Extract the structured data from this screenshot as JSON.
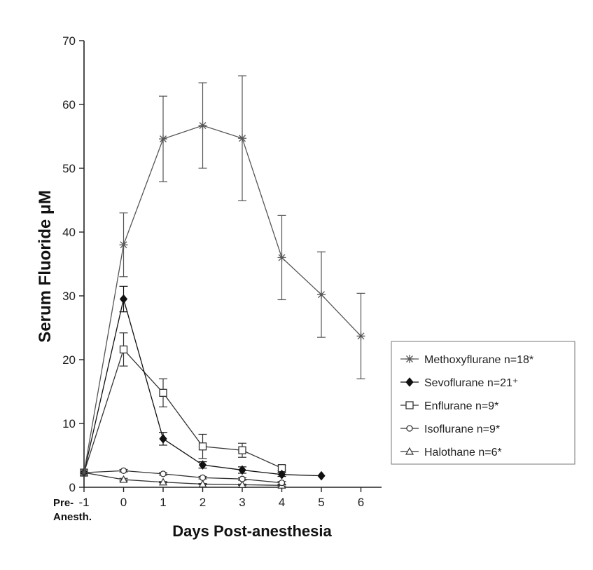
{
  "chart_data": {
    "type": "line",
    "xlabel": "Days Post-anesthesia",
    "ylabel": "Serum Fluoride μM",
    "x_pre_label": [
      "Pre-",
      "Anesth."
    ],
    "xlim": [
      -1,
      6.5
    ],
    "ylim": [
      0,
      70
    ],
    "x_ticks": [
      -1,
      0,
      1,
      2,
      3,
      4,
      5,
      6
    ],
    "y_ticks": [
      0,
      10,
      20,
      30,
      40,
      50,
      60,
      70
    ],
    "grid": false,
    "legend_position": "right",
    "series": [
      {
        "name": "Methoxyflurane n=18*",
        "marker": "star",
        "color": "#555555",
        "x": [
          -1,
          0,
          1,
          2,
          3,
          4,
          5,
          6
        ],
        "y": [
          2.3,
          38,
          54.6,
          56.7,
          54.7,
          36,
          30.2,
          23.7
        ],
        "err": [
          0,
          5,
          6.7,
          6.7,
          9.8,
          6.6,
          6.7,
          6.7
        ]
      },
      {
        "name": "Sevoflurane n=21⁺",
        "marker": "diamond",
        "color": "#111111",
        "x": [
          -1,
          0,
          1,
          2,
          3,
          4,
          5
        ],
        "y": [
          2.3,
          29.5,
          7.6,
          3.5,
          2.7,
          2.0,
          1.8
        ],
        "err": [
          0,
          2.0,
          1.0,
          0.5,
          0.5,
          0.3,
          0
        ]
      },
      {
        "name": "Enflurane n=9*",
        "marker": "square",
        "color": "#333333",
        "x": [
          -1,
          0,
          1,
          2,
          3,
          4
        ],
        "y": [
          2.3,
          21.6,
          14.8,
          6.4,
          5.8,
          3.0
        ],
        "err": [
          0,
          2.6,
          2.2,
          1.9,
          1.1,
          0.4
        ]
      },
      {
        "name": "Isoflurane n=9*",
        "marker": "circle",
        "color": "#333333",
        "x": [
          -1,
          0,
          1,
          2,
          3,
          4
        ],
        "y": [
          2.3,
          2.6,
          2.1,
          1.5,
          1.3,
          0.7
        ],
        "err": [
          0,
          0.2,
          0.2,
          0.2,
          0.2,
          0.2
        ]
      },
      {
        "name": "Halothane n=6*",
        "marker": "triangle",
        "color": "#333333",
        "x": [
          -1,
          0,
          1,
          2,
          3,
          4
        ],
        "y": [
          2.3,
          1.2,
          0.8,
          0.5,
          0.4,
          0.3
        ],
        "err": [
          0,
          0.2,
          0.1,
          0.1,
          0.1,
          0.1
        ]
      }
    ]
  }
}
